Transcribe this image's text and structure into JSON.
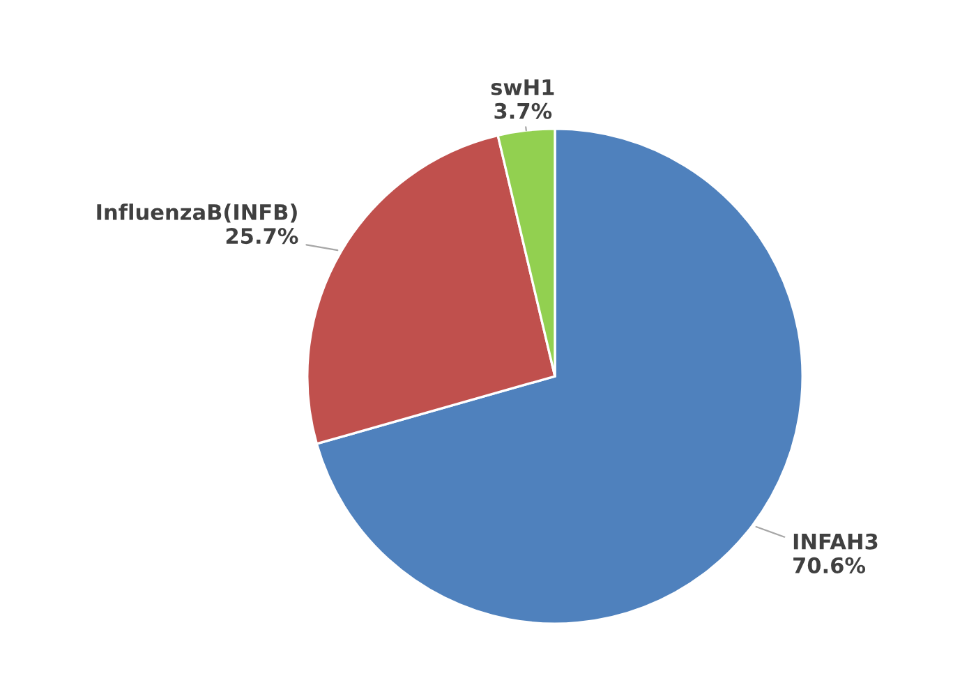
{
  "chart_data": {
    "type": "pie",
    "categories": [
      "INFAH3",
      "InfluenzaB(INFB)",
      "swH1"
    ],
    "values": [
      70.6,
      25.7,
      3.7
    ],
    "colors": [
      "#4f81bd",
      "#c0504d",
      "#92d050"
    ],
    "value_labels": [
      "70.6%",
      "25.7%",
      "3.7%"
    ],
    "legend": false
  }
}
